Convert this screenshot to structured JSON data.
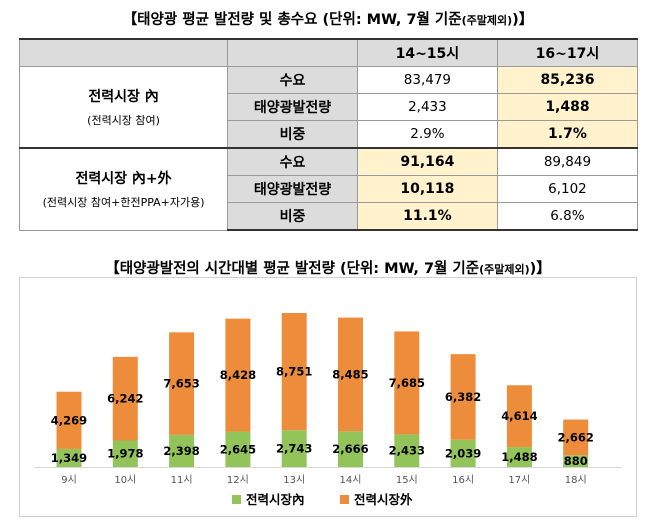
{
  "table_title": {
    "main": "【태양광 평균 발전량 및 총수요 (단위: MW, 7월 기준",
    "small": "(주말제외)",
    "close": ")】"
  },
  "table": {
    "col_headers": [
      "14~15시",
      "16~17시"
    ],
    "group1": {
      "name": "전력시장 內",
      "sub": "(전력시장 참여)"
    },
    "group2": {
      "name": "전력시장 內+外",
      "sub": "(전력시장 참여+한전PPA+자가용)"
    },
    "rows": [
      {
        "label": "수요",
        "values": [
          "83,479",
          "85,236"
        ]
      },
      {
        "label": "태양광발전량",
        "values": [
          "2,433",
          "1,488"
        ]
      },
      {
        "label": "비중",
        "values": [
          "2.9%",
          "1.7%"
        ]
      },
      {
        "label": "수요",
        "values": [
          "91,164",
          "89,849"
        ]
      },
      {
        "label": "태양광발전량",
        "values": [
          "10,118",
          "6,102"
        ]
      },
      {
        "label": "비중",
        "values": [
          "11.1%",
          "6.8%"
        ]
      }
    ]
  },
  "chart_title": {
    "main": "【태양광발전의 시간대별 평균 발전량 (단위: MW, 7월 기준",
    "small": "(주말제외)",
    "close": ")】"
  },
  "colors": {
    "green": "#92c45a",
    "orange": "#ed8c3b",
    "highlight": "#fff2cc",
    "header_gray": "#dcdcdc"
  },
  "chart_data": {
    "type": "bar",
    "stacked": true,
    "categories": [
      "9시",
      "10시",
      "11시",
      "12시",
      "13시",
      "14시",
      "15시",
      "16시",
      "17시",
      "18시"
    ],
    "series": [
      {
        "name": "전력시장內",
        "values": [
          1349,
          1978,
          2398,
          2645,
          2743,
          2666,
          2433,
          2039,
          1488,
          880
        ],
        "labels": [
          "1,349",
          "1,978",
          "2,398",
          "2,645",
          "2,743",
          "2,666",
          "2,433",
          "2,039",
          "1,488",
          "880"
        ]
      },
      {
        "name": "전력시장外",
        "values": [
          4269,
          6242,
          7653,
          8428,
          8751,
          8485,
          7685,
          6382,
          4614,
          2662
        ],
        "labels": [
          "4,269",
          "6,242",
          "7,653",
          "8,428",
          "8,751",
          "8,485",
          "7,685",
          "6,382",
          "4,614",
          "2,662"
        ]
      }
    ],
    "legend_position": "bottom",
    "grid": false
  }
}
